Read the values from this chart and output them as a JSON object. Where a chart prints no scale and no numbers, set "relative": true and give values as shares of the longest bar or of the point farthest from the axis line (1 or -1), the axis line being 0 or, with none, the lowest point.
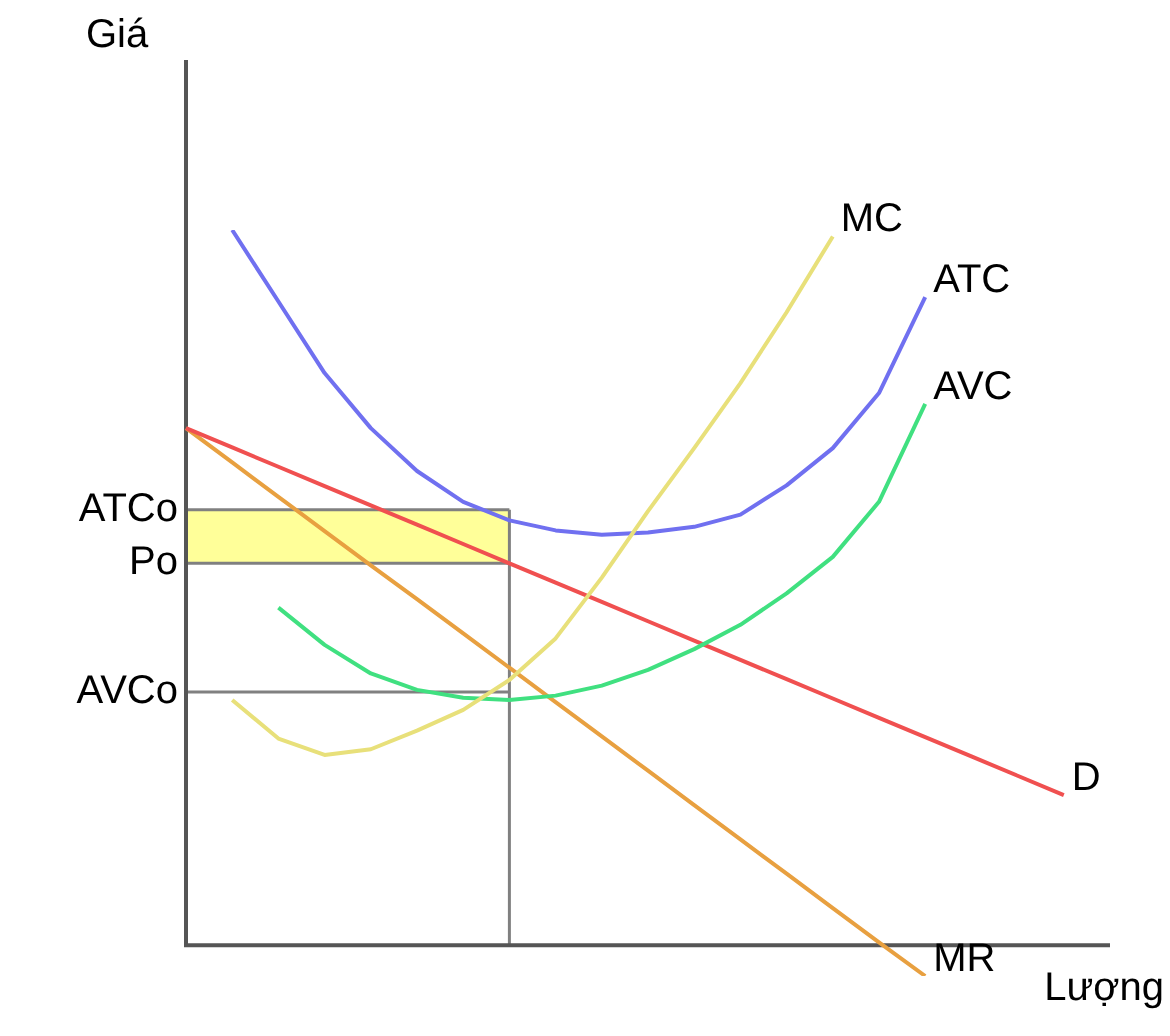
{
  "chart_data": {
    "type": "line",
    "relative": true,
    "ylabel": "Giá",
    "xlabel": "Lượng",
    "legend": false,
    "marker": "none",
    "line_style": "solid",
    "categories": [
      null,
      null,
      null,
      null,
      null,
      null,
      null,
      null,
      null,
      null,
      null,
      null,
      null,
      null,
      null,
      null,
      null,
      null,
      null,
      null,
      null
    ],
    "series": [
      {
        "name": "MC",
        "color": "#e8e07a",
        "values": [
          null,
          0.343,
          0.289,
          0.266,
          0.274,
          0.3,
          0.329,
          0.371,
          0.429,
          0.514,
          0.607,
          0.695,
          0.786,
          0.885,
          0.991,
          null,
          null,
          null,
          null,
          null,
          null
        ]
      },
      {
        "name": "ATC",
        "color": "#7070f0",
        "values": [
          null,
          1,
          0.9,
          0.8,
          0.723,
          0.663,
          0.62,
          0.594,
          0.58,
          0.574,
          0.577,
          0.585,
          0.602,
          0.643,
          0.695,
          0.772,
          0.906,
          null,
          null,
          null,
          null
        ]
      },
      {
        "name": "AVC",
        "color": "#40e080",
        "values": [
          null,
          null,
          0.472,
          0.42,
          0.38,
          0.357,
          0.346,
          0.343,
          0.349,
          0.363,
          0.385,
          0.414,
          0.448,
          0.492,
          0.543,
          0.62,
          0.757,
          null,
          null,
          null,
          null
        ]
      },
      {
        "name": "D",
        "color": "#f05050",
        "values": [
          0.723,
          0.696,
          0.669,
          0.642,
          0.615,
          0.588,
          0.561,
          0.534,
          0.507,
          0.48,
          0.453,
          0.426,
          0.399,
          0.372,
          0.345,
          0.318,
          0.291,
          0.264,
          0.237,
          0.21,
          null
        ]
      },
      {
        "name": "MR",
        "color": "#e8a040",
        "values": [
          0.723,
          0.675,
          0.627,
          0.579,
          0.531,
          0.484,
          0.436,
          0.388,
          0.34,
          0.292,
          0.244,
          0.196,
          0.148,
          0.1,
          0.052,
          0.004,
          -0.043,
          null,
          null,
          null,
          null
        ]
      }
    ],
    "ref_lines": [
      {
        "axis": "y",
        "value": 0.609,
        "label": "ATCo",
        "color": "#808080"
      },
      {
        "axis": "y",
        "value": 0.534,
        "label": "Po",
        "color": "#808080"
      },
      {
        "axis": "y",
        "value": 0.354,
        "label": "AVCo",
        "color": "#808080"
      }
    ],
    "bands": [
      {
        "axis": "y",
        "from": 0.534,
        "to": 0.609,
        "color": "#ffff99"
      }
    ]
  }
}
